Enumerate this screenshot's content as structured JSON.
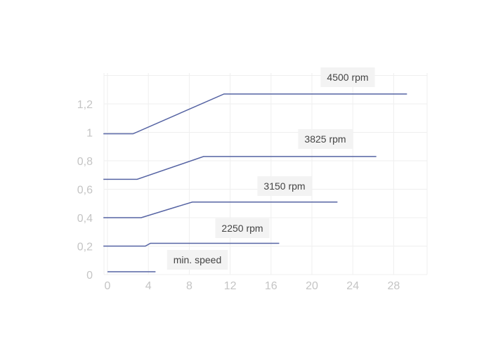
{
  "chart_data": {
    "type": "line",
    "title": "",
    "xlabel": "",
    "ylabel": "",
    "xlim": [
      0,
      31
    ],
    "ylim": [
      0,
      1.4
    ],
    "grid": true,
    "xticks": [
      "0",
      "4",
      "8",
      "12",
      "16",
      "20",
      "24",
      "28"
    ],
    "yticks": [
      "0",
      "0,2",
      "0,4",
      "0,6",
      "0,8",
      "1",
      "1,2"
    ],
    "colors": {
      "line": "#5563a3",
      "label_bg": "#f3f3f3",
      "tick": "#c4c4c4",
      "grid": "#efefef"
    },
    "series": [
      {
        "name": "min. speed",
        "points": [
          [
            0,
            0.02
          ],
          [
            4.7,
            0.02
          ]
        ]
      },
      {
        "name": "2250 rpm",
        "points": [
          [
            -0.4,
            0.2
          ],
          [
            3.7,
            0.2
          ],
          [
            4.2,
            0.22
          ],
          [
            16.8,
            0.22
          ]
        ]
      },
      {
        "name": "3150 rpm",
        "points": [
          [
            -0.4,
            0.4
          ],
          [
            3.3,
            0.4
          ],
          [
            8.3,
            0.51
          ],
          [
            22.5,
            0.51
          ]
        ]
      },
      {
        "name": "3825 rpm",
        "points": [
          [
            -0.4,
            0.67
          ],
          [
            2.9,
            0.67
          ],
          [
            9.4,
            0.83
          ],
          [
            26.3,
            0.83
          ]
        ]
      },
      {
        "name": "4500 rpm",
        "points": [
          [
            -0.4,
            0.99
          ],
          [
            2.5,
            0.99
          ],
          [
            11.4,
            1.27
          ],
          [
            29.3,
            1.27
          ]
        ]
      }
    ]
  }
}
